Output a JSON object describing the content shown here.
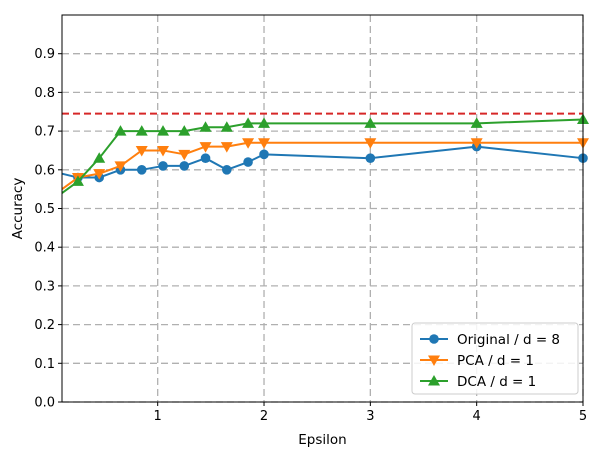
{
  "chart_data": {
    "type": "line",
    "xlabel": "Epsilon",
    "ylabel": "Accuracy",
    "xlim": [
      0.1,
      5
    ],
    "ylim": [
      0,
      1
    ],
    "grid": true,
    "grid_style": "dashed",
    "legend_position": "bottom-right",
    "xticks": [
      {
        "value": 1,
        "label": "1"
      },
      {
        "value": 2,
        "label": "2"
      },
      {
        "value": 3,
        "label": "3"
      },
      {
        "value": 4,
        "label": "4"
      },
      {
        "value": 5,
        "label": "5"
      }
    ],
    "yticks": [
      {
        "value": 0.0,
        "label": "0.0"
      },
      {
        "value": 0.1,
        "label": "0.1"
      },
      {
        "value": 0.2,
        "label": "0.2"
      },
      {
        "value": 0.3,
        "label": "0.3"
      },
      {
        "value": 0.4,
        "label": "0.4"
      },
      {
        "value": 0.5,
        "label": "0.5"
      },
      {
        "value": 0.6,
        "label": "0.6"
      },
      {
        "value": 0.7,
        "label": "0.7"
      },
      {
        "value": 0.8,
        "label": "0.8"
      },
      {
        "value": 0.9,
        "label": "0.9"
      }
    ],
    "reference_line": {
      "y": 0.745,
      "color": "#d62728",
      "style": "dashed"
    },
    "series": [
      {
        "name": "Original / d = 8",
        "color": "#1f77b4",
        "marker": "circle",
        "x": [
          0.1,
          0.25,
          0.45,
          0.65,
          0.85,
          1.05,
          1.25,
          1.45,
          1.65,
          1.85,
          2.0,
          3.0,
          4.0,
          5.0
        ],
        "y": [
          0.59,
          0.58,
          0.58,
          0.6,
          0.6,
          0.61,
          0.61,
          0.63,
          0.6,
          0.62,
          0.64,
          0.63,
          0.66,
          0.63
        ],
        "marker_from_index": 1
      },
      {
        "name": "PCA / d = 1",
        "color": "#ff7f0e",
        "marker": "triangle-down",
        "x": [
          0.1,
          0.25,
          0.45,
          0.65,
          0.85,
          1.05,
          1.25,
          1.45,
          1.65,
          1.85,
          2.0,
          3.0,
          4.0,
          5.0
        ],
        "y": [
          0.55,
          0.58,
          0.59,
          0.61,
          0.65,
          0.65,
          0.64,
          0.66,
          0.66,
          0.67,
          0.67,
          0.67,
          0.67,
          0.67
        ],
        "marker_from_index": 1
      },
      {
        "name": "DCA / d = 1",
        "color": "#2ca02c",
        "marker": "triangle-up",
        "x": [
          0.1,
          0.25,
          0.45,
          0.65,
          0.85,
          1.05,
          1.25,
          1.45,
          1.65,
          1.85,
          2.0,
          3.0,
          4.0,
          5.0
        ],
        "y": [
          0.54,
          0.57,
          0.63,
          0.7,
          0.7,
          0.7,
          0.7,
          0.71,
          0.71,
          0.72,
          0.72,
          0.72,
          0.72,
          0.73
        ],
        "marker_from_index": 1
      }
    ]
  }
}
